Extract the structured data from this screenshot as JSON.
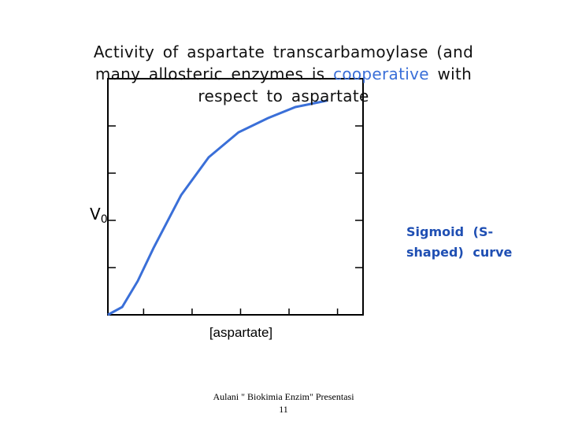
{
  "chart_data": {
    "type": "line",
    "title_parts": [
      "Activity of aspartate transcarbamoylase (and many allosteric enzymes is ",
      "cooperative",
      " with respect to aspartate"
    ],
    "title_highlight_color": "#3a6fd8",
    "xlabel": "[aspartate]",
    "ylabel": "V",
    "ylabel_subscript": "0",
    "annotation": "Sigmoid (S-shaped) curve",
    "footer": "Aulani \" Biokimia Enzim\" Presentasi",
    "page_number": "11",
    "color": "#3a6fd8",
    "x": [
      0,
      5.6,
      11.7,
      17.9,
      28.7,
      39.5,
      51.2,
      62.7,
      73.5,
      85.8
    ],
    "values": [
      0,
      3.3,
      14.3,
      28.3,
      50.7,
      66.7,
      77.3,
      83.3,
      88,
      90.7
    ],
    "xlim": [
      0,
      100
    ],
    "ylim": [
      0,
      100
    ],
    "xticks": [
      14,
      33,
      52,
      71,
      90
    ],
    "yticks": [
      20,
      40,
      60,
      80
    ]
  }
}
